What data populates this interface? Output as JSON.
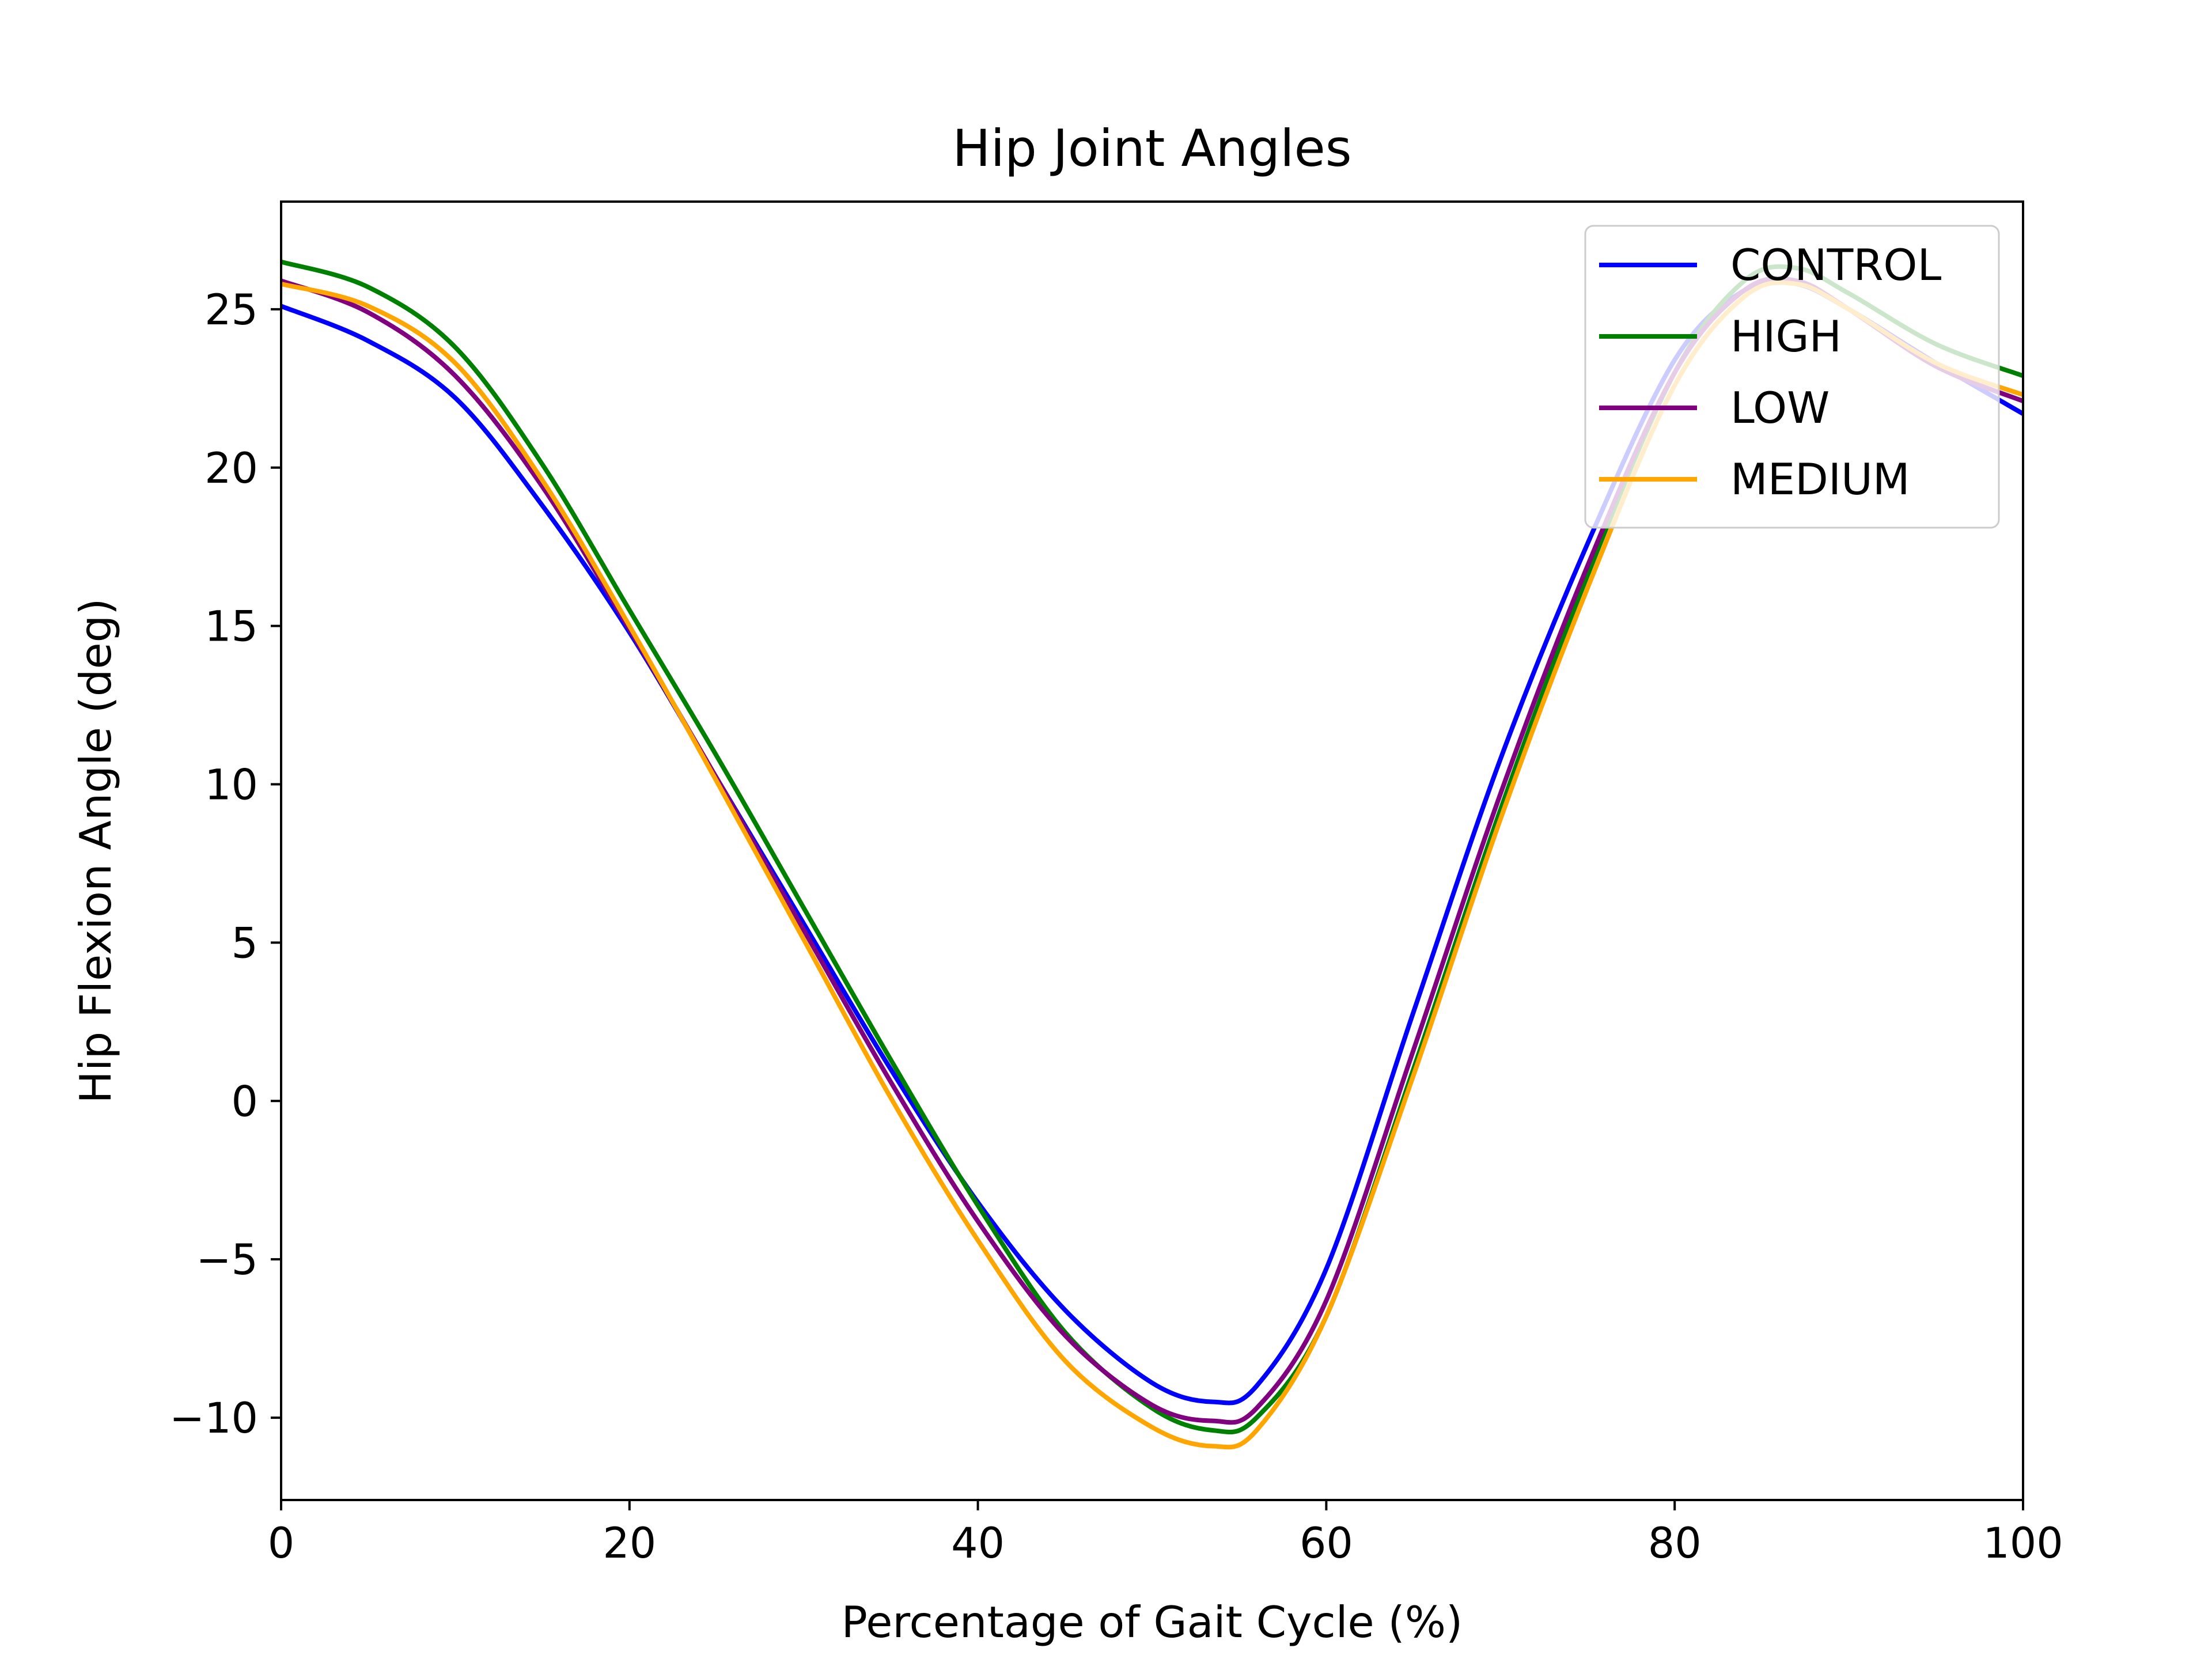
{
  "chart_data": {
    "type": "line",
    "title": "Hip Joint Angles",
    "xlabel": "Percentage of Gait Cycle (%)",
    "ylabel": "Hip Flexion Angle (deg)",
    "xlim": [
      0,
      100
    ],
    "ylim": [
      -12.6,
      28.4
    ],
    "xticks": [
      0,
      20,
      40,
      60,
      80,
      100
    ],
    "xtick_labels": [
      "0",
      "20",
      "40",
      "60",
      "80",
      "100"
    ],
    "yticks": [
      -10,
      -5,
      0,
      5,
      10,
      15,
      20,
      25
    ],
    "ytick_labels": [
      "−10",
      "−5",
      "0",
      "5",
      "10",
      "15",
      "20",
      "25"
    ],
    "grid": false,
    "legend_position": "top-right",
    "x": [
      0,
      5,
      10,
      15,
      20,
      25,
      30,
      35,
      40,
      45,
      50,
      53.5,
      56,
      60,
      65,
      70,
      75,
      80,
      84,
      87,
      90,
      95,
      100
    ],
    "series": [
      {
        "name": "CONTROL",
        "color": "#0000ff",
        "values": [
          25.1,
          24.0,
          22.2,
          18.8,
          14.8,
          10.2,
          5.6,
          1.0,
          -3.2,
          -6.6,
          -8.9,
          -9.5,
          -9.0,
          -5.3,
          2.8,
          10.8,
          17.6,
          23.4,
          25.6,
          25.8,
          25.0,
          23.3,
          21.7
        ]
      },
      {
        "name": "HIGH",
        "color": "#008000",
        "values": [
          26.5,
          25.7,
          23.8,
          20.1,
          15.5,
          10.9,
          6.1,
          1.3,
          -3.3,
          -7.3,
          -9.7,
          -10.4,
          -10.0,
          -6.8,
          1.0,
          9.2,
          16.6,
          23.0,
          25.9,
          26.3,
          25.5,
          23.9,
          22.9
        ]
      },
      {
        "name": "LOW",
        "color": "#800080",
        "values": [
          25.9,
          24.9,
          22.9,
          19.4,
          14.9,
          10.2,
          5.4,
          0.6,
          -3.8,
          -7.4,
          -9.6,
          -10.1,
          -9.7,
          -6.3,
          1.6,
          9.7,
          16.9,
          23.0,
          25.6,
          25.9,
          25.0,
          23.2,
          22.1
        ]
      },
      {
        "name": "MEDIUM",
        "color": "#ffa500",
        "values": [
          25.8,
          25.1,
          23.3,
          19.6,
          15.0,
          10.1,
          5.1,
          0.1,
          -4.4,
          -8.2,
          -10.3,
          -10.9,
          -10.4,
          -6.8,
          0.8,
          8.9,
          16.2,
          22.6,
          25.4,
          25.8,
          25.0,
          23.3,
          22.3
        ]
      }
    ]
  }
}
